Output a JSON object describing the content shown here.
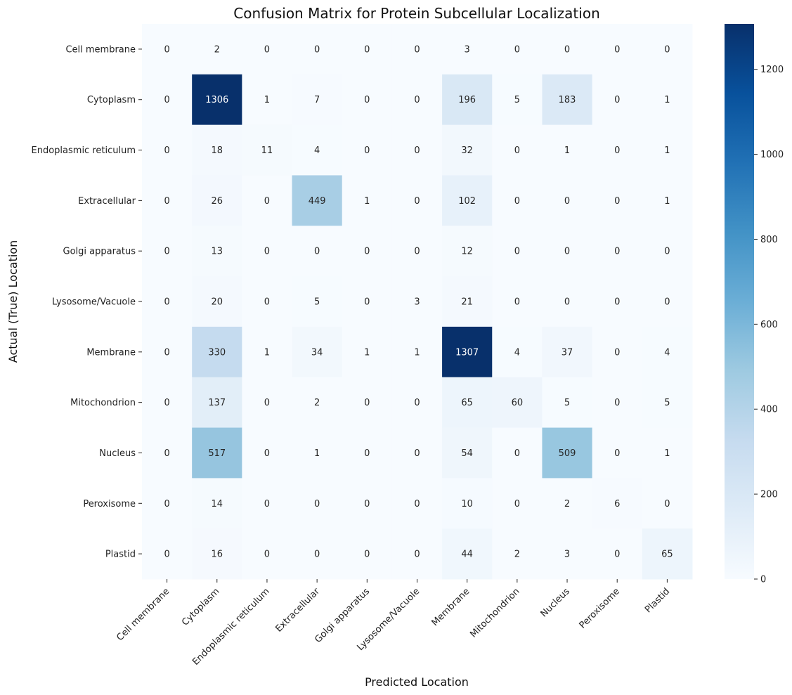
{
  "chart_data": {
    "type": "heatmap",
    "title": "Confusion Matrix for Protein Subcellular Localization",
    "xlabel": "Predicted Location",
    "ylabel": "Actual (True) Location",
    "x_categories": [
      "Cell membrane",
      "Cytoplasm",
      "Endoplasmic reticulum",
      "Extracellular",
      "Golgi apparatus",
      "Lysosome/Vacuole",
      "Membrane",
      "Mitochondrion",
      "Nucleus",
      "Peroxisome",
      "Plastid"
    ],
    "y_categories": [
      "Cell membrane",
      "Cytoplasm",
      "Endoplasmic reticulum",
      "Extracellular",
      "Golgi apparatus",
      "Lysosome/Vacuole",
      "Membrane",
      "Mitochondrion",
      "Nucleus",
      "Peroxisome",
      "Plastid"
    ],
    "values": [
      [
        0,
        2,
        0,
        0,
        0,
        0,
        3,
        0,
        0,
        0,
        0
      ],
      [
        0,
        1306,
        1,
        7,
        0,
        0,
        196,
        5,
        183,
        0,
        1
      ],
      [
        0,
        18,
        11,
        4,
        0,
        0,
        32,
        0,
        1,
        0,
        1
      ],
      [
        0,
        26,
        0,
        449,
        1,
        0,
        102,
        0,
        0,
        0,
        1
      ],
      [
        0,
        13,
        0,
        0,
        0,
        0,
        12,
        0,
        0,
        0,
        0
      ],
      [
        0,
        20,
        0,
        5,
        0,
        3,
        21,
        0,
        0,
        0,
        0
      ],
      [
        0,
        330,
        1,
        34,
        1,
        1,
        1307,
        4,
        37,
        0,
        4
      ],
      [
        0,
        137,
        0,
        2,
        0,
        0,
        65,
        60,
        5,
        0,
        5
      ],
      [
        0,
        517,
        0,
        1,
        0,
        0,
        54,
        0,
        509,
        0,
        1
      ],
      [
        0,
        14,
        0,
        0,
        0,
        0,
        10,
        0,
        2,
        6,
        0
      ],
      [
        0,
        16,
        0,
        0,
        0,
        0,
        44,
        2,
        3,
        0,
        65
      ]
    ],
    "colormap": "Blues",
    "colorbar": {
      "min": 0,
      "max": 1307,
      "ticks": [
        0,
        200,
        400,
        600,
        800,
        1000,
        1200
      ]
    },
    "grid": false,
    "legend": "colorbar-right"
  }
}
